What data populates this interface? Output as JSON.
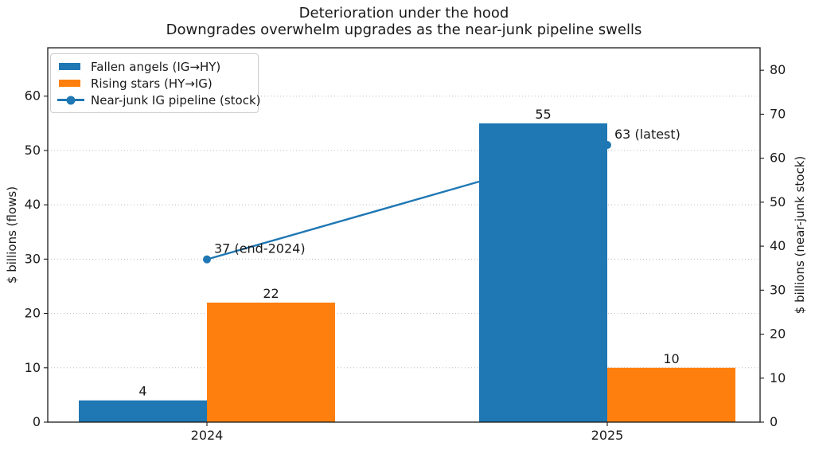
{
  "chart_data": {
    "type": "bar+line-dual-axis",
    "title": "Deterioration under the hood",
    "subtitle": "Downgrades overwhelm upgrades as the near-junk pipeline swells",
    "categories": [
      "2024",
      "2025"
    ],
    "series": [
      {
        "name": "Fallen angels (IG→HY)",
        "type": "bar",
        "axis": "left",
        "color": "#1f77b4",
        "values": [
          4,
          55
        ],
        "value_labels": [
          "4",
          "55"
        ]
      },
      {
        "name": "Rising stars (HY→IG)",
        "type": "bar",
        "axis": "left",
        "color": "#ff7f0e",
        "values": [
          22,
          10
        ],
        "value_labels": [
          "22",
          "10"
        ]
      },
      {
        "name": "Near-junk IG pipeline (stock)",
        "type": "line",
        "axis": "right",
        "color": "#1f77b4",
        "values": [
          37,
          63
        ],
        "point_labels": [
          "37 (end-2024)",
          "63 (latest)"
        ]
      }
    ],
    "ylabel_left": "$ billions (flows)",
    "ylabel_right": "$ billions (near-junk stock)",
    "yticks_left": [
      0,
      10,
      20,
      30,
      40,
      50,
      60
    ],
    "yticks_right": [
      0,
      10,
      20,
      30,
      40,
      50,
      60,
      70,
      80
    ],
    "ylim_left": [
      0,
      68.9
    ],
    "ylim_right": [
      0,
      85.1
    ],
    "grid": {
      "axis": "y",
      "on_ticks": "left",
      "style": "dotted",
      "color": "#bbbbbb"
    },
    "legend_position": "upper-left",
    "frame_color": "#1a1a1a",
    "background": "#ffffff"
  }
}
